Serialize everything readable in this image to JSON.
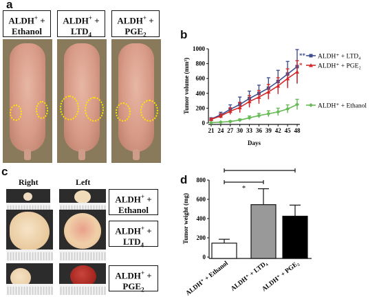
{
  "panels": {
    "a": "a",
    "b": "b",
    "c": "c",
    "d": "d"
  },
  "panel_a": {
    "groups": [
      {
        "line1": "ALDH",
        "sup": "+",
        "plus": " +",
        "line2": "Ethanol",
        "sub": ""
      },
      {
        "line1": "ALDH",
        "sup": "+",
        "plus": " +",
        "line2": "LTD",
        "sub": "4"
      },
      {
        "line1": "ALDH",
        "sup": "+",
        "plus": " +",
        "line2": "PGE",
        "sub": "2"
      }
    ]
  },
  "panel_c": {
    "col_right": "Right",
    "col_left": "Left",
    "groups": [
      {
        "line1": "ALDH",
        "sup": "+",
        "plus": " +",
        "line2": "Ethanol",
        "sub": ""
      },
      {
        "line1": "ALDH",
        "sup": "+",
        "plus": " +",
        "line2": "LTD",
        "sub": "4"
      },
      {
        "line1": "ALDH",
        "sup": "+",
        "plus": " +",
        "line2": "PGE",
        "sub": "2"
      }
    ]
  },
  "chart_data": [
    {
      "type": "line",
      "ylabel": "Tumor volume (mm³)",
      "xlabel": "Days",
      "x": [
        21,
        24,
        27,
        30,
        33,
        36,
        39,
        42,
        45,
        48
      ],
      "xlim": [
        21,
        48
      ],
      "ylim": [
        0,
        1000
      ],
      "yticks": [
        0,
        200,
        400,
        600,
        800,
        1000
      ],
      "series": [
        {
          "name": "ALDH⁺ + LTD₄",
          "color": "#3d4f8f",
          "marker": "square",
          "values": [
            55,
            110,
            185,
            250,
            330,
            400,
            470,
            560,
            660,
            760
          ],
          "errors": [
            15,
            35,
            60,
            100,
            100,
            110,
            140,
            150,
            170,
            230
          ],
          "annotation": "**"
        },
        {
          "name": "ALDH⁺ + PGE₂",
          "color": "#d62828",
          "marker": "triangle",
          "values": [
            50,
            95,
            160,
            210,
            290,
            350,
            420,
            500,
            600,
            690
          ],
          "errors": [
            15,
            30,
            45,
            70,
            80,
            90,
            100,
            110,
            130,
            150
          ],
          "annotation": "*"
        },
        {
          "name": "ALDH⁺ + Ethanol",
          "color": "#66bb55",
          "marker": "diamond",
          "values": [
            5,
            12,
            20,
            40,
            70,
            100,
            125,
            150,
            190,
            250
          ],
          "errors": [
            3,
            5,
            10,
            15,
            25,
            30,
            40,
            50,
            55,
            70
          ],
          "annotation": ""
        }
      ],
      "legend_position": "right"
    },
    {
      "type": "bar",
      "ylabel": "Tumor weight (mg)",
      "categories": [
        "ALDH⁺ + Ethanol",
        "ALDH⁺ + LTD₄",
        "ALDH⁺ + PGE₂"
      ],
      "values": [
        145,
        545,
        425
      ],
      "errors": [
        40,
        165,
        115
      ],
      "colors": [
        "#ffffff",
        "#999999",
        "#000000"
      ],
      "ylim": [
        0,
        800
      ],
      "yticks": [
        0,
        200,
        400,
        600,
        800
      ],
      "significance": [
        {
          "from": 0,
          "to": 1,
          "label": "*"
        },
        {
          "from": 0,
          "to": 2,
          "label": "*"
        }
      ]
    }
  ]
}
